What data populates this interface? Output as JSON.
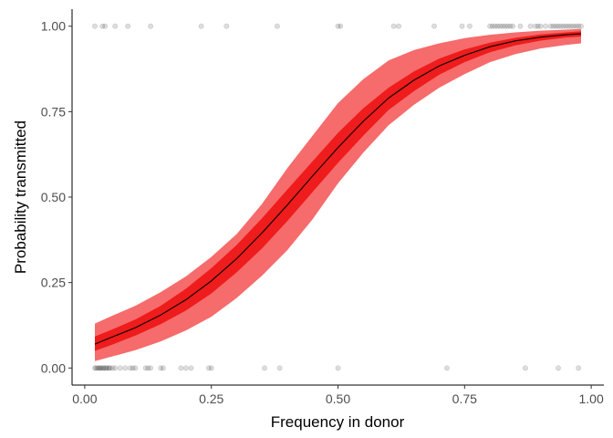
{
  "chart_data": {
    "type": "line",
    "xlabel": "Frequency in donor",
    "ylabel": "Probability transmitted",
    "xlim": [
      -0.025,
      1.025
    ],
    "ylim": [
      -0.05,
      1.05
    ],
    "x_ticks": [
      0,
      0.25,
      0.5,
      0.75,
      1
    ],
    "x_tick_labels": [
      "0.00",
      "0.25",
      "0.50",
      "0.75",
      "1.00"
    ],
    "y_ticks": [
      0,
      0.25,
      0.5,
      0.75,
      1
    ],
    "y_tick_labels": [
      "0.00",
      "0.25",
      "0.50",
      "0.75",
      "1.00"
    ],
    "grid": false,
    "colors": {
      "outer_band": "#f66b6b",
      "inner_band": "#ee1c1c",
      "fit_line": "#000000",
      "points": "#000000"
    },
    "fit": {
      "x": [
        0.02,
        0.05,
        0.1,
        0.15,
        0.2,
        0.25,
        0.3,
        0.35,
        0.4,
        0.45,
        0.5,
        0.55,
        0.6,
        0.65,
        0.7,
        0.75,
        0.8,
        0.85,
        0.9,
        0.95,
        0.98
      ],
      "y": [
        0.07,
        0.088,
        0.118,
        0.155,
        0.2,
        0.255,
        0.32,
        0.395,
        0.477,
        0.562,
        0.645,
        0.722,
        0.79,
        0.842,
        0.884,
        0.915,
        0.94,
        0.957,
        0.968,
        0.975,
        0.978
      ],
      "outer_lower": [
        0.02,
        0.032,
        0.052,
        0.078,
        0.11,
        0.15,
        0.205,
        0.27,
        0.345,
        0.435,
        0.54,
        0.63,
        0.71,
        0.77,
        0.82,
        0.86,
        0.895,
        0.918,
        0.935,
        0.945,
        0.95
      ],
      "outer_upper": [
        0.13,
        0.15,
        0.182,
        0.222,
        0.268,
        0.325,
        0.392,
        0.48,
        0.585,
        0.68,
        0.775,
        0.845,
        0.9,
        0.93,
        0.95,
        0.965,
        0.975,
        0.982,
        0.987,
        0.99,
        0.992
      ],
      "inner_lower": [
        0.05,
        0.066,
        0.095,
        0.128,
        0.168,
        0.218,
        0.28,
        0.35,
        0.43,
        0.515,
        0.6,
        0.68,
        0.755,
        0.81,
        0.858,
        0.895,
        0.924,
        0.944,
        0.958,
        0.967,
        0.97
      ],
      "inner_upper": [
        0.092,
        0.11,
        0.142,
        0.182,
        0.232,
        0.292,
        0.36,
        0.438,
        0.522,
        0.605,
        0.688,
        0.76,
        0.82,
        0.868,
        0.905,
        0.932,
        0.952,
        0.966,
        0.976,
        0.982,
        0.985
      ]
    },
    "points_at_1": [
      0.02,
      0.035,
      0.04,
      0.06,
      0.085,
      0.13,
      0.23,
      0.28,
      0.38,
      0.5,
      0.505,
      0.61,
      0.62,
      0.69,
      0.745,
      0.76,
      0.8,
      0.805,
      0.81,
      0.815,
      0.82,
      0.825,
      0.83,
      0.835,
      0.84,
      0.845,
      0.86,
      0.88,
      0.89,
      0.895,
      0.9,
      0.91,
      0.92,
      0.925,
      0.93,
      0.935,
      0.94,
      0.945,
      0.95,
      0.955,
      0.96,
      0.965,
      0.97,
      0.975,
      0.98
    ],
    "points_at_0": [
      0.02,
      0.022,
      0.025,
      0.028,
      0.03,
      0.032,
      0.035,
      0.037,
      0.04,
      0.042,
      0.045,
      0.048,
      0.05,
      0.055,
      0.06,
      0.07,
      0.08,
      0.09,
      0.095,
      0.1,
      0.12,
      0.125,
      0.13,
      0.15,
      0.155,
      0.19,
      0.2,
      0.21,
      0.245,
      0.25,
      0.355,
      0.385,
      0.5,
      0.715,
      0.87,
      0.935,
      0.975
    ]
  }
}
